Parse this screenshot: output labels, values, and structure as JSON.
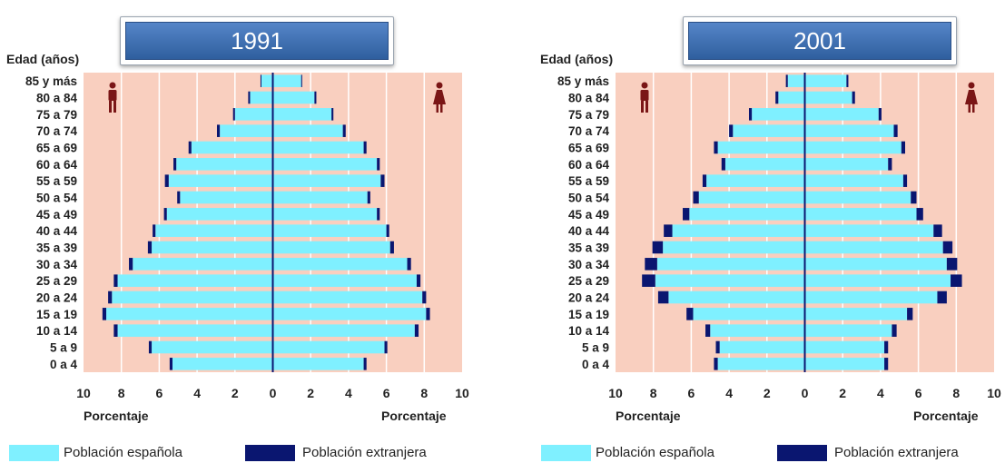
{
  "colors": {
    "background": "#f9cfbf",
    "grid": "#ffffff",
    "spanish": "#7ff0ff",
    "foreign": "#0a1670",
    "axis_line": "#0a1670",
    "banner": "#3f6fb0"
  },
  "icons": {
    "male": "male-figure-icon",
    "female": "female-figure-icon"
  },
  "chart_data": [
    {
      "type": "bar",
      "orientation": "horizontal",
      "title": "1991",
      "ylabel": "Edad (años)",
      "xlabel_left": "Porcentaje",
      "xlabel_right": "Porcentaje",
      "xlim": [
        -10,
        10
      ],
      "x_ticks": [
        "10",
        "8",
        "6",
        "4",
        "2",
        "0",
        "2",
        "4",
        "6",
        "8",
        "10"
      ],
      "categories": [
        "85 y más",
        "80 a 84",
        "75 a 79",
        "70 a 74",
        "65 a 69",
        "60 a 64",
        "55 a 59",
        "50 a 54",
        "45 a 49",
        "40 a 44",
        "35 a 39",
        "30 a 34",
        "25 a 29",
        "20 a 24",
        "15 a 19",
        "10 a 14",
        "5 a 9",
        "0 a 4"
      ],
      "legend": [
        "Población española",
        "Población extranjera"
      ],
      "grid": true,
      "series": [
        {
          "name": "Población española",
          "side": "left",
          "values": [
            0.6,
            1.2,
            2.0,
            2.8,
            4.3,
            5.1,
            5.5,
            4.9,
            5.6,
            6.2,
            6.4,
            7.4,
            8.2,
            8.5,
            8.8,
            8.2,
            6.4,
            5.3
          ]
        },
        {
          "name": "Población extranjera",
          "side": "left",
          "values": [
            0.05,
            0.1,
            0.1,
            0.15,
            0.15,
            0.15,
            0.2,
            0.15,
            0.15,
            0.15,
            0.2,
            0.2,
            0.2,
            0.2,
            0.2,
            0.2,
            0.15,
            0.15
          ]
        },
        {
          "name": "Población española",
          "side": "right",
          "values": [
            1.5,
            2.2,
            3.1,
            3.7,
            4.8,
            5.5,
            5.7,
            5.0,
            5.5,
            6.0,
            6.2,
            7.1,
            7.6,
            7.9,
            8.1,
            7.5,
            5.9,
            4.8
          ]
        },
        {
          "name": "Población extranjera",
          "side": "right",
          "values": [
            0.05,
            0.1,
            0.1,
            0.15,
            0.15,
            0.15,
            0.2,
            0.15,
            0.15,
            0.15,
            0.2,
            0.2,
            0.2,
            0.2,
            0.2,
            0.2,
            0.15,
            0.15
          ]
        }
      ]
    },
    {
      "type": "bar",
      "orientation": "horizontal",
      "title": "2001",
      "ylabel": "Edad (años)",
      "xlabel_left": "Porcentaje",
      "xlabel_right": "Porcentaje",
      "xlim": [
        -10,
        10
      ],
      "x_ticks": [
        "10",
        "8",
        "6",
        "4",
        "2",
        "0",
        "2",
        "4",
        "6",
        "8",
        "10"
      ],
      "categories": [
        "85 y más",
        "80 a 84",
        "75 a 79",
        "70 a 74",
        "65 a 69",
        "60 a 64",
        "55 a 59",
        "50 a 54",
        "45 a 49",
        "40 a 44",
        "35 a 39",
        "30 a 34",
        "25 a 29",
        "20 a 24",
        "15 a 19",
        "10 a 14",
        "5 a 9",
        "0 a 4"
      ],
      "legend": [
        "Población española",
        "Población extranjera"
      ],
      "grid": true,
      "series": [
        {
          "name": "Población española",
          "side": "left",
          "values": [
            0.9,
            1.4,
            2.8,
            3.8,
            4.6,
            4.2,
            5.2,
            5.6,
            6.1,
            7.0,
            7.5,
            7.8,
            7.9,
            7.2,
            5.9,
            5.0,
            4.5,
            4.6
          ]
        },
        {
          "name": "Población extranjera",
          "side": "left",
          "values": [
            0.1,
            0.15,
            0.15,
            0.2,
            0.2,
            0.2,
            0.2,
            0.3,
            0.35,
            0.45,
            0.55,
            0.65,
            0.7,
            0.55,
            0.35,
            0.25,
            0.2,
            0.2
          ]
        },
        {
          "name": "Población española",
          "side": "right",
          "values": [
            2.2,
            2.5,
            3.9,
            4.7,
            5.1,
            4.4,
            5.2,
            5.6,
            5.9,
            6.8,
            7.3,
            7.5,
            7.7,
            7.0,
            5.4,
            4.6,
            4.2,
            4.2
          ]
        },
        {
          "name": "Población extranjera",
          "side": "right",
          "values": [
            0.1,
            0.15,
            0.15,
            0.2,
            0.2,
            0.2,
            0.2,
            0.3,
            0.35,
            0.45,
            0.5,
            0.55,
            0.6,
            0.5,
            0.3,
            0.25,
            0.2,
            0.2
          ]
        }
      ]
    }
  ]
}
